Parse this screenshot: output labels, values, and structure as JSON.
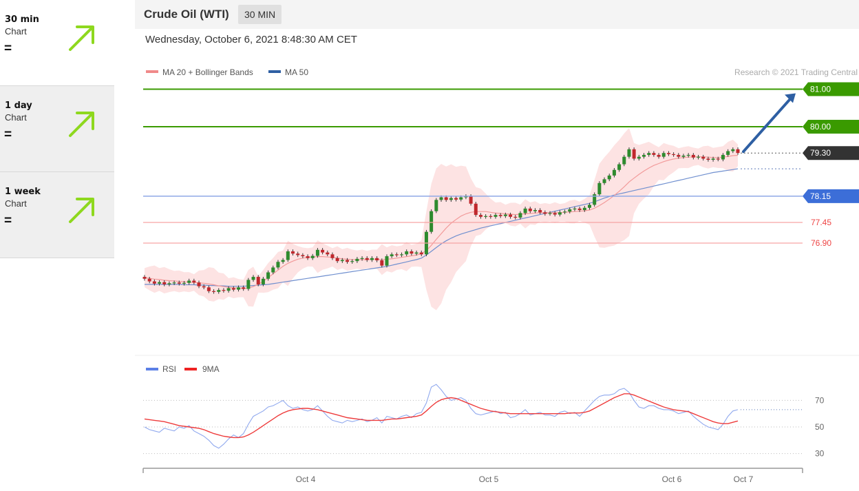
{
  "sidebar": {
    "items": [
      {
        "period": "30 min",
        "sub": "Chart",
        "status": "="
      },
      {
        "period": "1 day",
        "sub": "Chart",
        "status": "="
      },
      {
        "period": "1 week",
        "sub": "Chart",
        "status": "="
      }
    ],
    "arrow_color": "#8ed81e"
  },
  "header": {
    "instrument": "Crude Oil (WTI)",
    "timeframe": "30 MIN",
    "timestamp": "Wednesday, October 6, 2021 8:48:30 AM CET"
  },
  "chart_data": {
    "type": "line",
    "legend": {
      "items": [
        {
          "label": "MA 20 + Bollinger Bands",
          "color": "#f08a8a"
        },
        {
          "label": "MA 50",
          "color": "#2e5fa3"
        }
      ]
    },
    "copyright": "Research © 2021 Trading Central",
    "price_axis": {
      "range": [
        75.3,
        81.25
      ]
    },
    "levels": [
      {
        "value": 81.0,
        "label": "81.00",
        "kind": "resistance",
        "color": "#3a9a00"
      },
      {
        "value": 80.0,
        "label": "80.00",
        "kind": "resistance",
        "color": "#3a9a00"
      },
      {
        "value": 79.3,
        "label": "79.30",
        "kind": "last",
        "color": "#333333"
      },
      {
        "value": 78.15,
        "label": "78.15",
        "kind": "pivot",
        "color": "#3c6ed8"
      },
      {
        "value": 77.45,
        "label": "77.45",
        "kind": "support",
        "color": "#ee4444"
      },
      {
        "value": 76.9,
        "label": "76.90",
        "kind": "support",
        "color": "#ee4444"
      }
    ],
    "projection": {
      "from": 79.3,
      "to": 81.0,
      "color": "#2e5fa3"
    },
    "x_ticks": [
      "Oct 4",
      "Oct 5",
      "Oct 6",
      "Oct 7"
    ],
    "price_series": [
      {
        "name": "close",
        "values": [
          75.95,
          75.88,
          75.82,
          75.86,
          75.8,
          75.83,
          75.85,
          75.82,
          75.84,
          75.9,
          75.85,
          75.75,
          75.72,
          75.62,
          75.6,
          75.65,
          75.63,
          75.7,
          75.66,
          75.72,
          75.68,
          75.92,
          76.0,
          75.8,
          75.95,
          76.12,
          76.25,
          76.4,
          76.45,
          76.68,
          76.62,
          76.58,
          76.55,
          76.5,
          76.56,
          76.72,
          76.65,
          76.6,
          76.5,
          76.42,
          76.45,
          76.4,
          76.42,
          76.48,
          76.5,
          76.45,
          76.5,
          76.44,
          76.3,
          76.55,
          76.6,
          76.58,
          76.6,
          76.68,
          76.62,
          76.65,
          76.6,
          77.2,
          77.75,
          78.05,
          78.12,
          78.05,
          78.1,
          78.06,
          78.12,
          78.15,
          77.95,
          77.65,
          77.6,
          77.62,
          77.6,
          77.65,
          77.62,
          77.66,
          77.6,
          77.58,
          77.7,
          77.82,
          77.75,
          77.78,
          77.72,
          77.68,
          77.7,
          77.66,
          77.72,
          77.74,
          77.8,
          77.82,
          77.78,
          77.84,
          77.92,
          78.2,
          78.5,
          78.6,
          78.7,
          78.85,
          79.0,
          79.2,
          79.4,
          79.15,
          79.2,
          79.25,
          79.3,
          79.25,
          79.2,
          79.3,
          79.27,
          79.25,
          79.2,
          79.23,
          79.25,
          79.18,
          79.2,
          79.15,
          79.12,
          79.15,
          79.13,
          79.25,
          79.35,
          79.4,
          79.3
        ]
      },
      {
        "name": "MA 20",
        "values": [
          75.98,
          75.96,
          75.94,
          75.93,
          75.91,
          75.9,
          75.89,
          75.88,
          75.87,
          75.86,
          75.85,
          75.84,
          75.83,
          75.81,
          75.79,
          75.76,
          75.74,
          75.72,
          75.71,
          75.7,
          75.69,
          75.7,
          75.74,
          75.8,
          75.88,
          75.98,
          76.08,
          76.18,
          76.28,
          76.36,
          76.42,
          76.47,
          76.5,
          76.52,
          76.53,
          76.54,
          76.54,
          76.53,
          76.52,
          76.5,
          76.48,
          76.47,
          76.46,
          76.46,
          76.46,
          76.46,
          76.47,
          76.47,
          76.46,
          76.47,
          76.48,
          76.5,
          76.52,
          76.54,
          76.56,
          76.58,
          76.62,
          76.7,
          76.84,
          77.0,
          77.15,
          77.3,
          77.43,
          77.53,
          77.62,
          77.68,
          77.72,
          77.74,
          77.74,
          77.74,
          77.72,
          77.7,
          77.69,
          77.68,
          77.67,
          77.66,
          77.67,
          77.68,
          77.69,
          77.7,
          77.71,
          77.71,
          77.71,
          77.71,
          77.71,
          77.72,
          77.73,
          77.74,
          77.75,
          77.76,
          77.78,
          77.83,
          77.9,
          77.98,
          78.07,
          78.17,
          78.28,
          78.4,
          78.53,
          78.63,
          78.73,
          78.82,
          78.9,
          78.97,
          79.02,
          79.07,
          79.11,
          79.14,
          79.16,
          79.18,
          79.19,
          79.2,
          79.2,
          79.2,
          79.19,
          79.18,
          79.18,
          79.19,
          79.21,
          79.23,
          79.24
        ]
      },
      {
        "name": "MA 50",
        "values": [
          75.8,
          75.8,
          75.8,
          75.8,
          75.8,
          75.8,
          75.8,
          75.8,
          75.79,
          75.79,
          75.79,
          75.78,
          75.78,
          75.77,
          75.77,
          75.76,
          75.76,
          75.75,
          75.75,
          75.75,
          75.75,
          75.76,
          75.77,
          75.78,
          75.79,
          75.8,
          75.82,
          75.84,
          75.86,
          75.88,
          75.9,
          75.92,
          75.94,
          75.96,
          75.98,
          76.0,
          76.02,
          76.04,
          76.06,
          76.08,
          76.1,
          76.12,
          76.14,
          76.16,
          76.18,
          76.2,
          76.22,
          76.24,
          76.26,
          76.28,
          76.31,
          76.34,
          76.37,
          76.4,
          76.43,
          76.46,
          76.5,
          76.58,
          76.68,
          76.78,
          76.88,
          76.96,
          77.03,
          77.09,
          77.14,
          77.18,
          77.22,
          77.26,
          77.3,
          77.33,
          77.36,
          77.39,
          77.42,
          77.45,
          77.48,
          77.51,
          77.54,
          77.57,
          77.6,
          77.63,
          77.66,
          77.69,
          77.72,
          77.75,
          77.78,
          77.81,
          77.84,
          77.87,
          77.9,
          77.93,
          77.96,
          78.0,
          78.05,
          78.1,
          78.14,
          78.18,
          78.21,
          78.24,
          78.27,
          78.3,
          78.33,
          78.36,
          78.39,
          78.42,
          78.45,
          78.48,
          78.51,
          78.54,
          78.57,
          78.6,
          78.63,
          78.66,
          78.69,
          78.72,
          78.75,
          78.78,
          78.8,
          78.82,
          78.84,
          78.86,
          78.88
        ]
      }
    ],
    "rsi": {
      "legend": [
        {
          "label": "RSI",
          "color": "#5b7fe6"
        },
        {
          "label": "9MA",
          "color": "#ee2222"
        }
      ],
      "levels": [
        70,
        50,
        30
      ],
      "range": [
        18,
        88
      ],
      "series": [
        {
          "name": "RSI",
          "values": [
            50,
            48,
            47,
            46,
            49,
            48,
            47,
            50,
            49,
            51,
            47,
            45,
            43,
            40,
            36,
            34,
            37,
            41,
            44,
            42,
            45,
            52,
            58,
            60,
            62,
            65,
            66,
            68,
            70,
            66,
            64,
            65,
            63,
            62,
            63,
            66,
            62,
            58,
            55,
            54,
            53,
            55,
            54,
            55,
            56,
            54,
            55,
            57,
            53,
            58,
            57,
            56,
            58,
            59,
            57,
            60,
            61,
            68,
            80,
            82,
            78,
            73,
            70,
            71,
            72,
            70,
            64,
            60,
            59,
            60,
            61,
            62,
            60,
            61,
            57,
            58,
            60,
            63,
            59,
            60,
            61,
            59,
            59,
            58,
            61,
            62,
            60,
            61,
            58,
            62,
            66,
            70,
            73,
            74,
            74,
            75,
            78,
            79,
            76,
            70,
            65,
            64,
            66,
            66,
            64,
            63,
            63,
            62,
            60,
            61,
            62,
            58,
            55,
            52,
            50,
            49,
            48,
            52,
            58,
            62,
            63
          ]
        },
        {
          "name": "9MA",
          "values": [
            56,
            55.5,
            55,
            54.5,
            54,
            53,
            52,
            51,
            50.5,
            50,
            49.5,
            49,
            48,
            46.5,
            45,
            44,
            43,
            42.5,
            42,
            42,
            42.5,
            44,
            46,
            48.5,
            51,
            53.5,
            56,
            58.5,
            60.5,
            62,
            63,
            63.5,
            64,
            64,
            63.5,
            63,
            62,
            61,
            60,
            59,
            58,
            57,
            56.5,
            56,
            55.5,
            55,
            55,
            55,
            55,
            55.5,
            56,
            56,
            56.5,
            57,
            57.5,
            58,
            59,
            62,
            65.5,
            68.5,
            70.5,
            71.5,
            72,
            71.5,
            70,
            68.5,
            67,
            65.5,
            64,
            63,
            62,
            61.5,
            61,
            60.5,
            60,
            60,
            60,
            60,
            60,
            60,
            60,
            60,
            60,
            60,
            60,
            60,
            60.5,
            60.5,
            60.5,
            61,
            62,
            64,
            66,
            68,
            70,
            72,
            73.5,
            75,
            75,
            74,
            72.5,
            71,
            69.5,
            68,
            66.5,
            65,
            64,
            63,
            62.5,
            62,
            61.5,
            60,
            58.5,
            57,
            55.5,
            54,
            53,
            52.5,
            52.5,
            53.5,
            54.5
          ]
        }
      ],
      "tick_labels": [
        "70",
        "50",
        "30"
      ]
    }
  }
}
